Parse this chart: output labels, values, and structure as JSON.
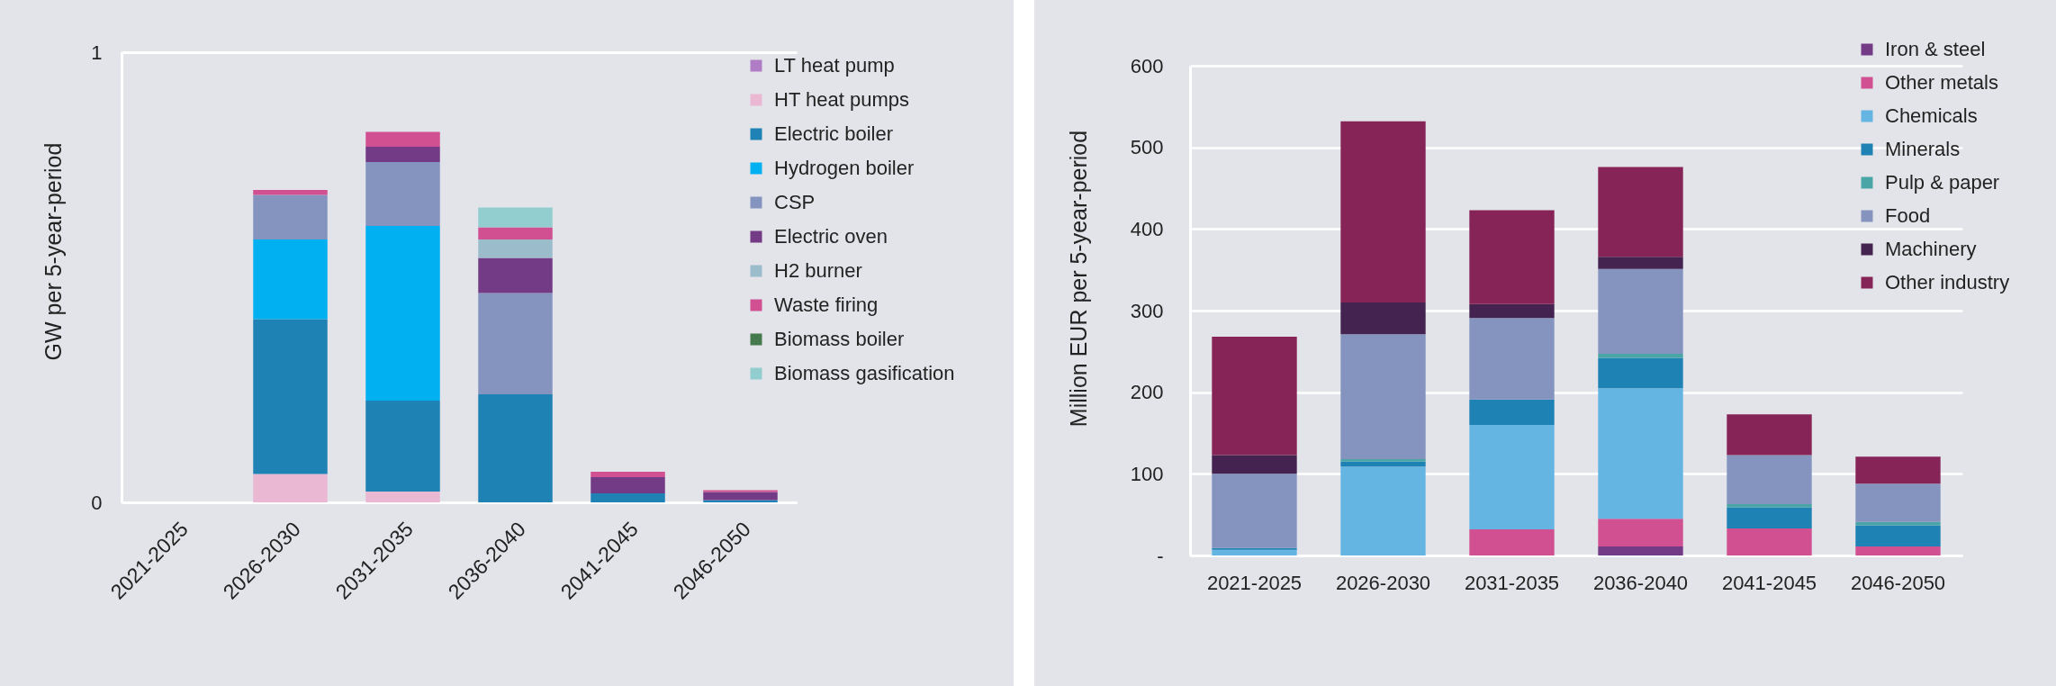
{
  "chart_data": [
    {
      "type": "bar",
      "ylabel": "GW per 5-year-period",
      "categories": [
        "2021-2025",
        "2026-2030",
        "2031-2035",
        "2036-2040",
        "2041-2045",
        "2046-2050"
      ],
      "stacked": true,
      "ylim": [
        0,
        1
      ],
      "yticks": [
        0,
        1
      ],
      "grid": "y",
      "legend": "top right",
      "series": [
        {
          "name": "LT heat pump",
          "color": "#b07cc6",
          "values": [
            0,
            0,
            0,
            0,
            0,
            0
          ]
        },
        {
          "name": "HT heat pumps",
          "color": "#ebb8d4",
          "values": [
            0,
            0.063,
            0.024,
            0,
            0,
            0
          ]
        },
        {
          "name": "Electric boiler",
          "color": "#1f82b4",
          "values": [
            0,
            0.344,
            0.202,
            0.24,
            0.02,
            0.005
          ]
        },
        {
          "name": "Hydrogen boiler",
          "color": "#00b0f0",
          "values": [
            0,
            0.177,
            0.388,
            0,
            0,
            0
          ]
        },
        {
          "name": "CSP",
          "color": "#8494bf",
          "values": [
            0,
            0.099,
            0.142,
            0.225,
            0,
            0
          ]
        },
        {
          "name": "Electric oven",
          "color": "#733b86",
          "values": [
            0,
            0,
            0.034,
            0.078,
            0.036,
            0.018
          ]
        },
        {
          "name": "H2 burner",
          "color": "#9bbccb",
          "values": [
            0,
            0,
            0,
            0.041,
            0,
            0
          ]
        },
        {
          "name": "Waste firing",
          "color": "#d15091",
          "values": [
            0,
            0.011,
            0.033,
            0.027,
            0.012,
            0.004
          ]
        },
        {
          "name": "Biomass boiler",
          "color": "#457a4f",
          "values": [
            0,
            0,
            0,
            0,
            0,
            0
          ]
        },
        {
          "name": "Biomass gasification",
          "color": "#92cdd0",
          "values": [
            0,
            0,
            0,
            0.044,
            0,
            0
          ]
        }
      ]
    },
    {
      "type": "bar",
      "ylabel": "Million EUR per 5-year-period",
      "categories": [
        "2021-2025",
        "2026-2030",
        "2031-2035",
        "2036-2040",
        "2041-2045",
        "2046-2050"
      ],
      "stacked": true,
      "ylim": [
        0,
        600
      ],
      "yticks": [
        {
          "value": 0,
          "label": "-"
        },
        100,
        200,
        300,
        400,
        500,
        600
      ],
      "grid": "y",
      "legend": "top right",
      "series": [
        {
          "name": "Iron & steel",
          "color": "#733b86",
          "values": [
            0,
            0,
            0,
            11,
            0,
            0
          ]
        },
        {
          "name": "Other metals",
          "color": "#d15091",
          "values": [
            0,
            0,
            32,
            34,
            33,
            11
          ]
        },
        {
          "name": "Chemicals",
          "color": "#64b5e2",
          "values": [
            7,
            109,
            128,
            160,
            0,
            0
          ]
        },
        {
          "name": "Minerals",
          "color": "#1f82b4",
          "values": [
            2,
            6,
            31,
            37,
            26,
            26
          ]
        },
        {
          "name": "Pulp & paper",
          "color": "#4aa6a6",
          "values": [
            0,
            3,
            0,
            5,
            4,
            4
          ]
        },
        {
          "name": "Food",
          "color": "#8494bf",
          "values": [
            91,
            153,
            100,
            104,
            60,
            47
          ]
        },
        {
          "name": "Machinery",
          "color": "#452350",
          "values": [
            23,
            39,
            17,
            15,
            0,
            0
          ]
        },
        {
          "name": "Other industry",
          "color": "#872457",
          "values": [
            145,
            222,
            115,
            110,
            50,
            33
          ]
        }
      ]
    }
  ]
}
